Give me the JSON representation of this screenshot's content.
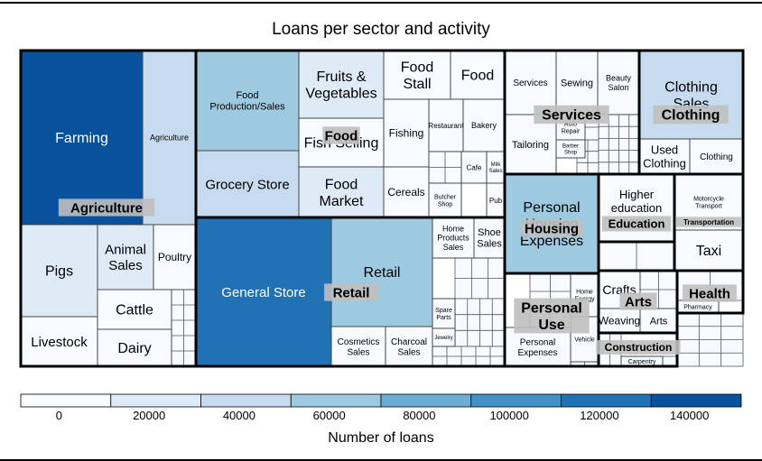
{
  "chart_data": {
    "type": "treemap",
    "title": "Loans per sector and activity",
    "colors": [
      "#f7fbff",
      "#deebf7",
      "#c6dbef",
      "#9ecae1",
      "#6baed6",
      "#4292c6",
      "#2171b5",
      "#08519c",
      "#08306b"
    ],
    "legend": {
      "title": "Number of loans",
      "ticks": [
        "0",
        "20000",
        "40000",
        "60000",
        "80000",
        "100000",
        "120000",
        "140000"
      ],
      "bins": [
        0,
        20000,
        40000,
        60000,
        80000,
        100000,
        120000,
        140000,
        160000
      ]
    },
    "sectors": [
      {
        "name": "Agriculture",
        "children": [
          {
            "name": "Farming",
            "value": 143000
          },
          {
            "name": "Agriculture",
            "value": 55000
          },
          {
            "name": "Pigs",
            "value": 33000
          },
          {
            "name": "Animal Sales",
            "value": 20000
          },
          {
            "name": "Poultry",
            "value": 12000
          },
          {
            "name": "Cattle",
            "value": 13000
          },
          {
            "name": "Livestock",
            "value": 14000
          },
          {
            "name": "Dairy",
            "value": 10000
          }
        ]
      },
      {
        "name": "Food",
        "children": [
          {
            "name": "Food Production/Sales",
            "value": 62000
          },
          {
            "name": "Grocery Store",
            "value": 40000
          },
          {
            "name": "Fruits & Vegetables",
            "value": 24000
          },
          {
            "name": "Fish Selling",
            "value": 19000
          },
          {
            "name": "Food Market",
            "value": 22000
          },
          {
            "name": "Food Stall",
            "value": 15000
          },
          {
            "name": "Food",
            "value": 14000
          },
          {
            "name": "Fishing",
            "value": 9000
          },
          {
            "name": "Cereals",
            "value": 8000
          },
          {
            "name": "Restaurant",
            "value": 6000
          },
          {
            "name": "Bakery",
            "value": 5000
          },
          {
            "name": "Cafe",
            "value": 3000
          },
          {
            "name": "Milk Sales",
            "value": 2500
          },
          {
            "name": "Butcher Shop",
            "value": 2500
          },
          {
            "name": "Pub",
            "value": 2000
          }
        ]
      },
      {
        "name": "Retail",
        "children": [
          {
            "name": "General Store",
            "value": 125000
          },
          {
            "name": "Retail",
            "value": 75000
          },
          {
            "name": "Cosmetics Sales",
            "value": 12000
          },
          {
            "name": "Charcoal Sales",
            "value": 10000
          },
          {
            "name": "Home Products Sales",
            "value": 6000
          },
          {
            "name": "Shoe Sales",
            "value": 5000
          },
          {
            "name": "Spare Parts",
            "value": 2500
          },
          {
            "name": "Jewelry",
            "value": 2000
          }
        ]
      },
      {
        "name": "Services",
        "children": [
          {
            "name": "Services",
            "value": 10000
          },
          {
            "name": "Sewing",
            "value": 8000
          },
          {
            "name": "Beauty Salon",
            "value": 6000
          },
          {
            "name": "Tailoring",
            "value": 8000
          },
          {
            "name": "Auto Repair",
            "value": 3000
          },
          {
            "name": "Barber Shop",
            "value": 2500
          }
        ]
      },
      {
        "name": "Clothing",
        "children": [
          {
            "name": "Clothing Sales",
            "value": 45000
          },
          {
            "name": "Used Clothing",
            "value": 5000
          },
          {
            "name": "Clothing",
            "value": 3000
          }
        ]
      },
      {
        "name": "Housing",
        "children": [
          {
            "name": "Personal Housing Expenses",
            "value": 60000
          }
        ]
      },
      {
        "name": "Education",
        "children": [
          {
            "name": "Higher education costs",
            "value": 15000
          }
        ]
      },
      {
        "name": "Transportation",
        "children": [
          {
            "name": "Motorcycle Transport",
            "value": 4000
          },
          {
            "name": "Taxi",
            "value": 5000
          }
        ]
      },
      {
        "name": "Personal Use",
        "children": [
          {
            "name": "Home Energy",
            "value": 3000
          },
          {
            "name": "Personal Expenses",
            "value": 2500
          },
          {
            "name": "Vehicle",
            "value": 2000
          }
        ]
      },
      {
        "name": "Arts",
        "children": [
          {
            "name": "Crafts",
            "value": 3000
          },
          {
            "name": "Weaving",
            "value": 3000
          },
          {
            "name": "Arts",
            "value": 2000
          }
        ]
      },
      {
        "name": "Health",
        "children": [
          {
            "name": "Pharmacy",
            "value": 2000
          }
        ]
      },
      {
        "name": "Construction",
        "children": [
          {
            "name": "Carpentry",
            "value": 2000
          }
        ]
      }
    ]
  }
}
